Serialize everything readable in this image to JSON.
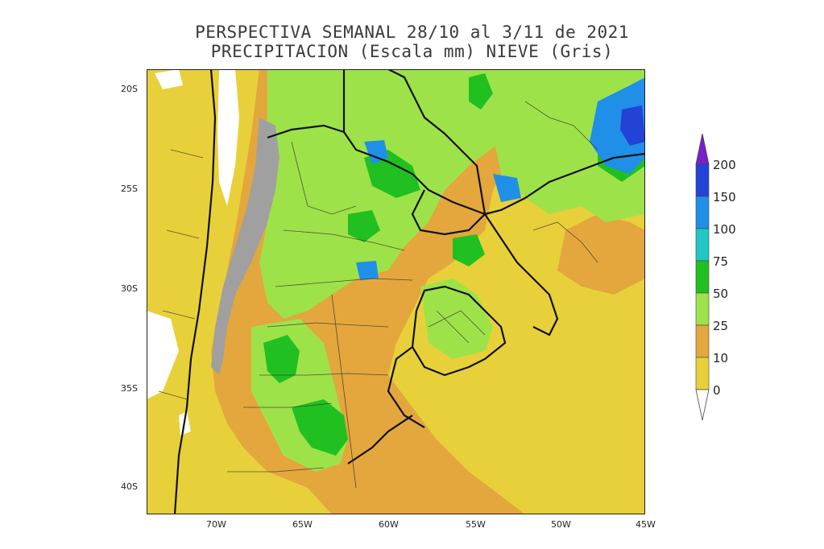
{
  "title": {
    "line1": "PERSPECTIVA SEMANAL  28/10 al 3/11 de 2021",
    "line2": "PRECIPITACION (Escala mm) NIEVE (Gris)"
  },
  "axes": {
    "latitude_labels": [
      "20S",
      "25S",
      "30S",
      "35S",
      "40S"
    ],
    "longitude_labels": [
      "70W",
      "65W",
      "60W",
      "55W",
      "50W",
      "45W"
    ]
  },
  "legend": {
    "labels": [
      "200",
      "150",
      "100",
      "75",
      "50",
      "25",
      "10",
      "0"
    ],
    "colors": [
      "#7a1fc9",
      "#2343d6",
      "#1f8fe8",
      "#22c7c4",
      "#20c020",
      "#9ee24a",
      "#e3a73d",
      "#e8d03a",
      "#ffffff"
    ]
  },
  "map_colors": {
    "dry": "#e8d03a",
    "low": "#e3a73d",
    "moderate": "#9ee24a",
    "wet": "#20c020",
    "heavy": "#22c7c4",
    "very_heavy": "#1f8fe8",
    "extreme": "#2343d6",
    "snow": "#a0a0a0",
    "no_data": "#ffffff",
    "border": "#111111"
  }
}
